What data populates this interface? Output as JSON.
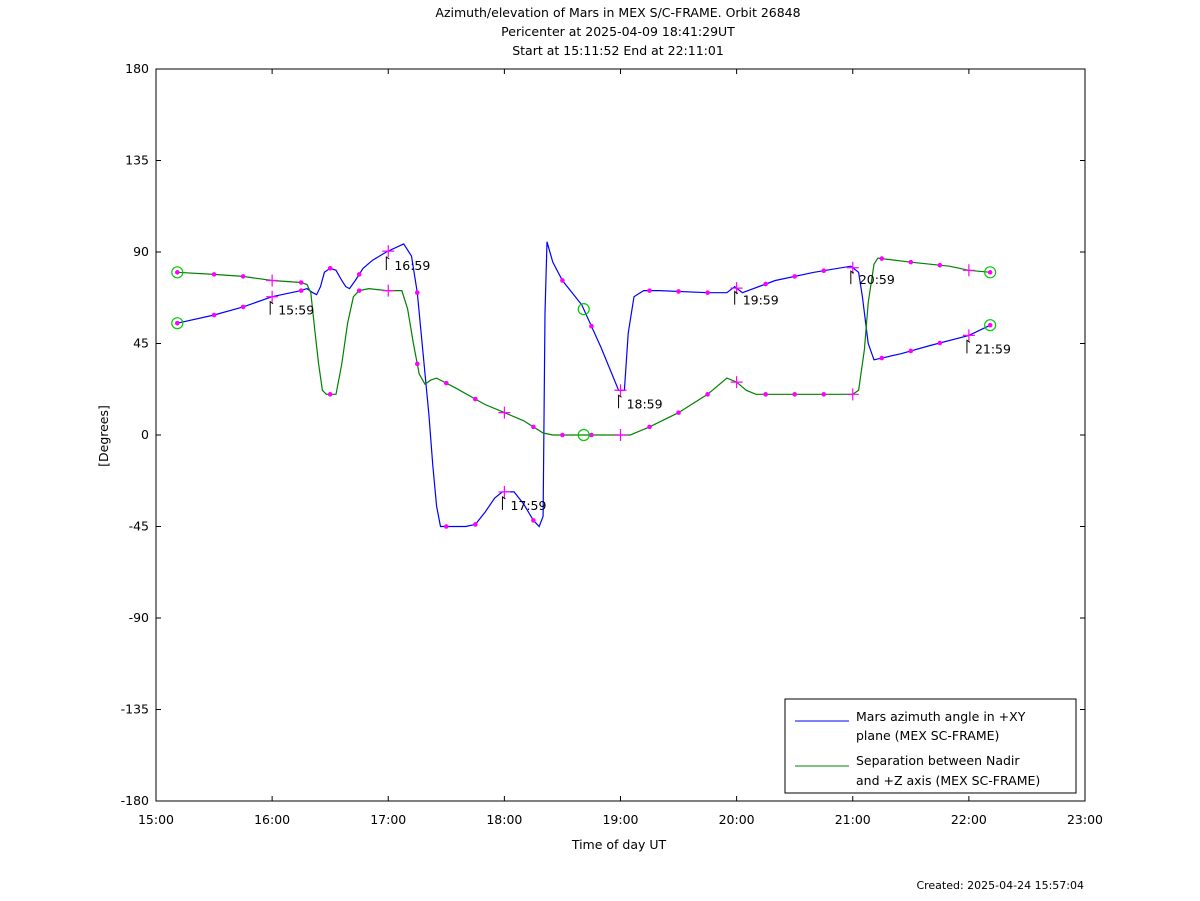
{
  "chart_data": {
    "type": "line",
    "title": [
      "Azimuth/elevation of Mars in MEX S/C-FRAME.  Orbit 26848",
      "Pericenter at 2025-04-09 18:41:29UT",
      "Start at 15:11:52 End at 22:11:01"
    ],
    "xlabel": "Time of day UT",
    "ylabel": "[Degrees]",
    "xlim": [
      "15:00",
      "23:00"
    ],
    "ylim": [
      -180,
      180
    ],
    "x_ticks": [
      "15:00",
      "16:00",
      "17:00",
      "18:00",
      "19:00",
      "20:00",
      "21:00",
      "22:00",
      "23:00"
    ],
    "y_ticks": [
      180,
      135,
      90,
      45,
      0,
      -45,
      -90,
      -135,
      -180
    ],
    "grid": false,
    "legend_position": "bottom-right",
    "colors": {
      "azimuth": "#0000ff",
      "separation": "#008000",
      "markers": "#ff00ff"
    },
    "series": [
      {
        "name": "Mars azimuth angle in +XY plane (MEX SC-FRAME)",
        "legend_lines": [
          "Mars azimuth angle in +XY",
          "plane (MEX SC-FRAME)"
        ],
        "color": "#0000ff",
        "points": [
          [
            "15:11",
            55
          ],
          [
            "15:30",
            59
          ],
          [
            "15:45",
            63
          ],
          [
            "16:00",
            68
          ],
          [
            "16:15",
            71
          ],
          [
            "16:18",
            72
          ],
          [
            "16:21",
            70
          ],
          [
            "16:23",
            69
          ],
          [
            "16:25",
            73
          ],
          [
            "16:27",
            80
          ],
          [
            "16:30",
            82
          ],
          [
            "16:33",
            81
          ],
          [
            "16:36",
            76
          ],
          [
            "16:38",
            73
          ],
          [
            "16:40",
            72
          ],
          [
            "16:43",
            76
          ],
          [
            "16:47",
            82
          ],
          [
            "16:52",
            86
          ],
          [
            "16:59",
            90
          ],
          [
            "17:08",
            94
          ],
          [
            "17:12",
            88
          ],
          [
            "17:15",
            70
          ],
          [
            "17:18",
            40
          ],
          [
            "17:21",
            10
          ],
          [
            "17:23",
            -15
          ],
          [
            "17:25",
            -35
          ],
          [
            "17:27",
            -45
          ],
          [
            "17:40",
            -45
          ],
          [
            "17:45",
            -44
          ],
          [
            "17:50",
            -38
          ],
          [
            "17:55",
            -31
          ],
          [
            "17:59",
            -28
          ],
          [
            "18:05",
            -28
          ],
          [
            "18:10",
            -34
          ],
          [
            "18:15",
            -42
          ],
          [
            "18:18",
            -45
          ],
          [
            "18:20",
            -40
          ],
          [
            "18:21",
            60
          ],
          [
            "18:22",
            95
          ],
          [
            "18:25",
            85
          ],
          [
            "18:30",
            76
          ],
          [
            "18:40",
            64
          ],
          [
            "18:50",
            43
          ],
          [
            "18:59",
            22
          ],
          [
            "19:02",
            22
          ],
          [
            "19:04",
            50
          ],
          [
            "19:07",
            68
          ],
          [
            "19:12",
            71
          ],
          [
            "19:20",
            71
          ],
          [
            "19:45",
            70
          ],
          [
            "19:55",
            70
          ],
          [
            "19:59",
            73
          ],
          [
            "20:03",
            70
          ],
          [
            "20:20",
            76
          ],
          [
            "20:40",
            80
          ],
          [
            "20:59",
            83
          ],
          [
            "21:03",
            80
          ],
          [
            "21:05",
            68
          ],
          [
            "21:08",
            45
          ],
          [
            "21:11",
            37
          ],
          [
            "21:25",
            40
          ],
          [
            "21:40",
            44
          ],
          [
            "22:00",
            49
          ],
          [
            "22:11",
            54
          ]
        ]
      },
      {
        "name": "Separation between Nadir and +Z axis (MEX SC-FRAME)",
        "legend_lines": [
          "Separation between Nadir",
          "and +Z axis (MEX SC-FRAME)"
        ],
        "color": "#008000",
        "points": [
          [
            "15:11",
            80
          ],
          [
            "15:30",
            79
          ],
          [
            "15:45",
            78
          ],
          [
            "16:00",
            76
          ],
          [
            "16:15",
            75
          ],
          [
            "16:18",
            74
          ],
          [
            "16:20",
            70
          ],
          [
            "16:22",
            52
          ],
          [
            "16:24",
            35
          ],
          [
            "16:26",
            22
          ],
          [
            "16:28",
            20
          ],
          [
            "16:33",
            20
          ],
          [
            "16:36",
            35
          ],
          [
            "16:39",
            55
          ],
          [
            "16:42",
            68
          ],
          [
            "16:45",
            71
          ],
          [
            "16:50",
            72
          ],
          [
            "16:59",
            71
          ],
          [
            "17:07",
            71
          ],
          [
            "17:10",
            62
          ],
          [
            "17:13",
            45
          ],
          [
            "17:16",
            30
          ],
          [
            "17:19",
            25
          ],
          [
            "17:22",
            27
          ],
          [
            "17:25",
            28
          ],
          [
            "17:35",
            23
          ],
          [
            "17:50",
            15
          ],
          [
            "18:00",
            11
          ],
          [
            "18:10",
            7
          ],
          [
            "18:20",
            1
          ],
          [
            "18:25",
            0
          ],
          [
            "19:05",
            0
          ],
          [
            "19:15",
            4
          ],
          [
            "19:30",
            11
          ],
          [
            "19:45",
            20
          ],
          [
            "19:55",
            28
          ],
          [
            "20:00",
            26
          ],
          [
            "20:05",
            22
          ],
          [
            "20:10",
            20
          ],
          [
            "21:00",
            20
          ],
          [
            "21:03",
            22
          ],
          [
            "21:06",
            42
          ],
          [
            "21:08",
            65
          ],
          [
            "21:11",
            84
          ],
          [
            "21:13",
            87
          ],
          [
            "21:30",
            85
          ],
          [
            "21:50",
            83
          ],
          [
            "22:00",
            81
          ],
          [
            "22:11",
            80
          ]
        ]
      }
    ],
    "marker_times": [
      "15:30",
      "15:45",
      "16:15",
      "16:30",
      "16:45",
      "17:15",
      "17:30",
      "17:45",
      "18:15",
      "18:30",
      "18:45",
      "19:15",
      "19:30",
      "19:45",
      "20:15",
      "20:30",
      "20:45",
      "21:15",
      "21:30",
      "21:45"
    ],
    "hour_markers": [
      "16:00",
      "17:00",
      "18:00",
      "19:00",
      "20:00",
      "21:00",
      "22:00"
    ],
    "circle_markers": [
      "15:11",
      "22:11"
    ],
    "pericenter_time": "18:41",
    "annotations": [
      {
        "label": "15:59",
        "time": "15:59",
        "value": 68
      },
      {
        "label": "16:59",
        "time": "16:59",
        "value": 90
      },
      {
        "label": "17:59",
        "time": "17:59",
        "value": -28
      },
      {
        "label": "18:59",
        "time": "18:59",
        "value": 22
      },
      {
        "label": "19:59",
        "time": "19:59",
        "value": 73
      },
      {
        "label": "20:59",
        "time": "20:59",
        "value": 83
      },
      {
        "label": "21:59",
        "time": "21:59",
        "value": 49
      }
    ]
  },
  "footer": {
    "created": "Created: 2025-04-24 15:57:04"
  }
}
